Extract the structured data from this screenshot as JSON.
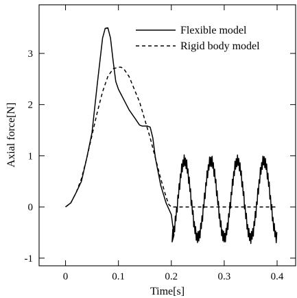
{
  "chart_data": {
    "type": "line",
    "title": "",
    "xlabel": "Time[s]",
    "ylabel": "Axial force[N]",
    "xlim": [
      -0.05,
      0.435
    ],
    "ylim": [
      -1.15,
      3.95
    ],
    "xticks": [
      0,
      0.1,
      0.2,
      0.3,
      0.4
    ],
    "xtick_labels": [
      "0",
      "0.1",
      "0.2",
      "0.3",
      "0.4"
    ],
    "yticks": [
      -1,
      0,
      1,
      2,
      3
    ],
    "ytick_labels": [
      "-1",
      "0",
      "1",
      "2",
      "3"
    ],
    "grid": false,
    "legend_position": "top-right",
    "series": [
      {
        "name": "Flexible model",
        "style": "solid",
        "color": "#000000",
        "x": [
          0,
          0.01,
          0.02,
          0.03,
          0.04,
          0.05,
          0.06,
          0.07,
          0.075,
          0.08,
          0.085,
          0.09,
          0.095,
          0.1,
          0.105,
          0.11,
          0.115,
          0.12,
          0.13,
          0.14,
          0.145,
          0.15,
          0.155,
          0.16,
          0.165,
          0.17,
          0.18,
          0.19,
          0.2,
          0.205
        ],
        "y": [
          0,
          0.08,
          0.28,
          0.5,
          0.95,
          1.45,
          2.4,
          3.3,
          3.49,
          3.5,
          3.3,
          2.85,
          2.45,
          2.3,
          2.2,
          2.1,
          2.0,
          1.9,
          1.75,
          1.6,
          1.58,
          1.58,
          1.58,
          1.56,
          1.35,
          0.95,
          0.42,
          0.08,
          -0.15,
          -0.55
        ],
        "oscillation": {
          "t_start": 0.2,
          "t_end": 0.4,
          "center": 0.15,
          "amplitude": 0.75,
          "period": 0.05,
          "phase_peak": 0.225,
          "noise": 0.12
        }
      },
      {
        "name": "Rigid body model",
        "style": "dashed",
        "color": "#000000",
        "x": [
          0,
          0.01,
          0.02,
          0.03,
          0.04,
          0.05,
          0.06,
          0.07,
          0.08,
          0.09,
          0.1,
          0.105,
          0.11,
          0.12,
          0.13,
          0.14,
          0.15,
          0.16,
          0.17,
          0.18,
          0.19,
          0.195,
          0.2,
          0.25,
          0.3,
          0.35,
          0.4
        ],
        "y": [
          0,
          0.08,
          0.28,
          0.55,
          0.95,
          1.4,
          1.85,
          2.25,
          2.55,
          2.7,
          2.73,
          2.73,
          2.7,
          2.55,
          2.3,
          2.05,
          1.7,
          1.35,
          0.95,
          0.55,
          0.2,
          0.05,
          0.0,
          0.0,
          0.0,
          0.0,
          0.0
        ]
      }
    ]
  }
}
